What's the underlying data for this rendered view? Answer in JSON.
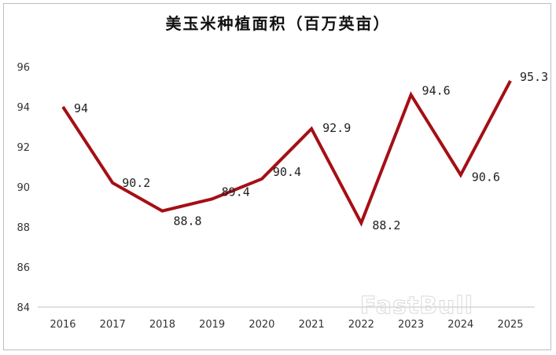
{
  "chart_data": {
    "type": "line",
    "title": "美玉米种植面积（百万英亩）",
    "categories": [
      "2016",
      "2017",
      "2018",
      "2019",
      "2020",
      "2021",
      "2022",
      "2023",
      "2024",
      "2025"
    ],
    "values": [
      94,
      90.2,
      88.8,
      89.4,
      90.4,
      92.9,
      88.2,
      94.6,
      90.6,
      95.3
    ],
    "data_labels": [
      "94",
      "90.2",
      "88.8",
      "89.4",
      "90.4",
      "92.9",
      "88.2",
      "94.6",
      "90.6",
      "95.3"
    ],
    "y_ticks": [
      "84",
      "86",
      "88",
      "90",
      "92",
      "94",
      "96"
    ],
    "ylim": [
      84,
      96
    ],
    "xlabel": "",
    "ylabel": "",
    "grid": false,
    "line_color": "#a50f15"
  },
  "watermark": "FastBull"
}
